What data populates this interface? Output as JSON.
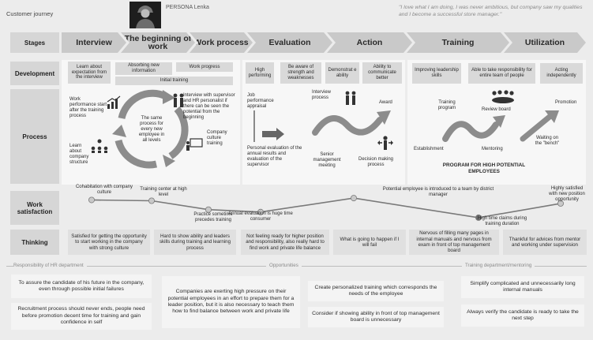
{
  "header": {
    "title": "Customer journey",
    "persona": "PERSONA Lenka",
    "quote": "\"I love what I am doing, I was never ambitious, but company saw my qualities and I become a successful store manager.\""
  },
  "row_labels": {
    "stages": "Stages",
    "development": "Development",
    "process": "Process",
    "work_satisfaction": "Work satisfaction",
    "thinking": "Thinking"
  },
  "stages": [
    "Interview",
    "The beginning of work",
    "Work process",
    "Evaluation",
    "Action",
    "Training",
    "Utilization"
  ],
  "development": {
    "learn": "Learn about expectation from the interview",
    "absorbing": "Absorbing new information",
    "work_progress": "Work progress",
    "initial_training": "Initial training",
    "high_performing": "High performing",
    "be_aware": "Be aware of strength and weaknesses",
    "demonstrate": "Demonstrat e ability",
    "ability_communicate": "Ability to communicate better",
    "improving": "Improving leadership skills",
    "responsibility": "Able to take responsibility for entire team of people",
    "acting": "Acting independently"
  },
  "process": {
    "work_performance": "Work performance start after the training process",
    "learn_structure": "Learn about company structure",
    "center": "The same process for every new employee in all levels",
    "interview_supervisor": "Interview with supervisor and HR personalist if there can be seen the potential from the beginning",
    "culture_training": "Company culture training",
    "job_appraisal": "Job performance appraisal",
    "personal_eval": "Personal evaluation of the annual results and evaluation of the supervisor",
    "interview_process": "Interview process",
    "award": "Award",
    "senior_meeting": "Senior management meeting",
    "decision_process": "Decision making process",
    "training_program": "Training program",
    "review_board": "Review board",
    "promotion": "Promotion",
    "establishment": "Establishment",
    "mentoring": "Mentoring",
    "waiting": "Waiting on the \"bench\"",
    "program_title": "PROGRAM FOR HIGH POTENTIAL EMPLOYEES"
  },
  "satisfaction": {
    "cohabitation": "Cohabitation with company culture",
    "training_center": "Training center at high level",
    "practice": "Practice sometime precedes training",
    "annual_eval": "Annual evaluation is huge time consumer",
    "introduced": "Potential employee is introduced to a team by district manager",
    "high_time": "High time claims during training duration",
    "highly_satisfied": "Highly satisfied with new position opportunity"
  },
  "thinking": [
    "Satisfied for getting the opportunity to start working in the company with strong culture",
    "Hard to show ability and leaders skills during training and learning process",
    "Not feeling ready for higher position and responsibility, also really hard to find work and private life balance",
    "What is going to happen if I will fail",
    "Nervous of filling many pages in internal manuals and nervous from exam in front of top management board",
    "Thankful for advices from mentor and working under supervision"
  ],
  "sections": {
    "hr": "Responsibility of HR department",
    "opportunities": "Opportunities",
    "training_dept": "Training department/mentoring"
  },
  "recommendations": {
    "hr_1": "To assure the candidate of his future in the company, even through possible initial failures",
    "hr_2": "Recruitment process should never ends, people need before promotion decent time for training and gain confidence in self",
    "opp_1": "Companies are exerting high pressure on their potential employees in an effort to prepare them for a leader position, but it is also necessary to teach them how to find balance between work and private life",
    "opp_2": "Create personalized training which corresponds the needs of the employee",
    "opp_3": "Consider if showing ability in front of top management board is unnecessary",
    "tr_1": "Simplify complicated and unnecessarily long internal manuals",
    "tr_2": "Always verify the candidate is ready to take the next step"
  },
  "chart_data": {
    "type": "line",
    "title": "",
    "series": [
      {
        "values": [
          0.78,
          0.75,
          0.42,
          0.33,
          0.85,
          0.12,
          0.65
        ]
      }
    ]
  },
  "colors": {
    "accent": "#444444",
    "panel": "#f7f7f7",
    "label": "#d6d6d6",
    "chevron": "#c9c9c9"
  }
}
